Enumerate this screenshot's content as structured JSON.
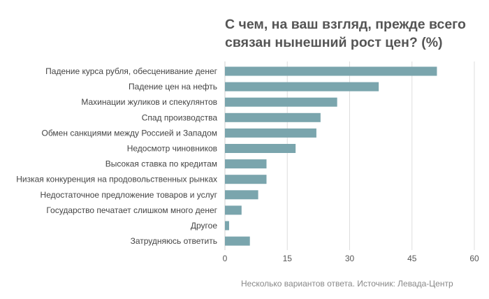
{
  "chart_data": {
    "type": "bar",
    "orientation": "horizontal",
    "title": "С чем, на ваш взгляд, прежде всего связан нынешний рост цен? (%)",
    "categories": [
      "Падение курса рубля, обесценивание денег",
      "Падение цен на нефть",
      "Махинации жуликов и спекулянтов",
      "Спад производства",
      "Обмен санкциями между Россией и Западом",
      "Недосмотр чиновников",
      "Высокая ставка по кредитам",
      "Низкая конкуренция на продовольственных рынках",
      "Недостаточное предложение товаров и услуг",
      "Государство печатает слишком много денег",
      "Другое",
      "Затрудняюсь ответить"
    ],
    "values": [
      51,
      37,
      27,
      23,
      22,
      17,
      10,
      10,
      8,
      4,
      1,
      6
    ],
    "xlim": [
      0,
      60
    ],
    "xticks": [
      0,
      15,
      30,
      45,
      60
    ],
    "grid": true,
    "bar_color": "#7aa5ad",
    "note": "Несколько вариантов ответа. Источник: Левада-Центр"
  }
}
